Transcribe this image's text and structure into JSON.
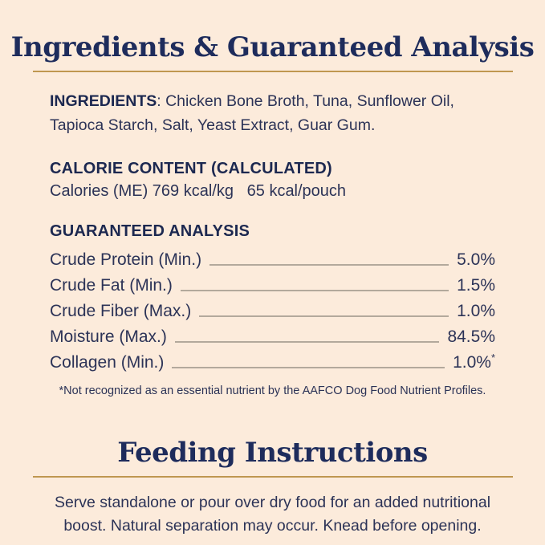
{
  "panel": {
    "colors": {
      "background": "#fcebdb",
      "heading_navy": "#1e2c5c",
      "body_navy": "#2c3357",
      "gold_rule": "#bf9750",
      "leader_line": "#b3a99c"
    },
    "section1": {
      "title": "Ingredients & Guaranteed Analysis",
      "ingredients": {
        "label": "INGREDIENTS",
        "text": ": Chicken Bone Broth, Tuna, Sunflower Oil, Tapioca Starch, Salt, Yeast Extract, Guar Gum."
      },
      "calorie": {
        "heading": "CALORIE CONTENT (CALCULATED)",
        "line": "Calories (ME) 769 kcal/kg   65 kcal/pouch"
      },
      "analysis": {
        "heading": "GUARANTEED ANALYSIS",
        "rows": [
          {
            "label": "Crude Protein (Min.)",
            "value": "5.0%"
          },
          {
            "label": "Crude Fat (Min.)",
            "value": "1.5%"
          },
          {
            "label": "Crude Fiber (Max.)",
            "value": "1.0%"
          },
          {
            "label": "Moisture (Max.)",
            "value": "84.5%"
          },
          {
            "label": "Collagen (Min.)",
            "value": "1.0%",
            "note": "*"
          }
        ],
        "footnote": "*Not recognized as an essential nutrient by the AAFCO Dog Food Nutrient Profiles."
      }
    },
    "section2": {
      "title": "Feeding Instructions",
      "body": "Serve standalone or pour over dry food for an added nutritional boost. Natural separation may occur. Knead before opening."
    }
  }
}
